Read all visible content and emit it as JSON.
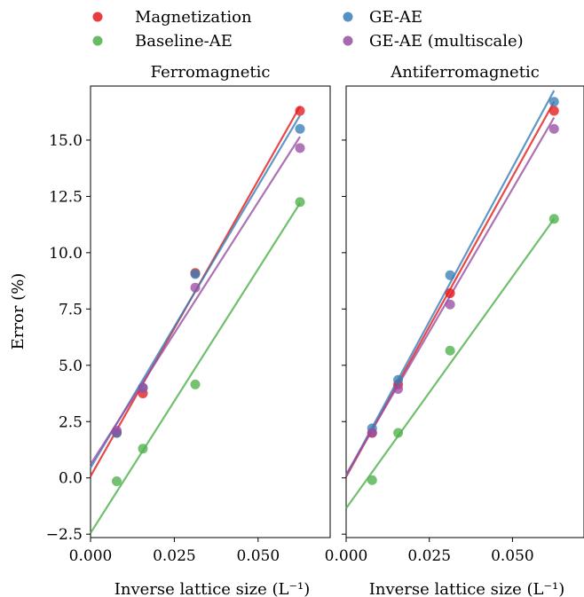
{
  "chart_data": {
    "type": "scatter",
    "ylabel": "Error (%)",
    "y_ticks": [
      -2.5,
      0.0,
      2.5,
      5.0,
      7.5,
      10.0,
      12.5,
      15.0
    ],
    "y_tick_labels": [
      "−2.5",
      "0.0",
      "2.5",
      "5.0",
      "7.5",
      "10.0",
      "12.5",
      "15.0"
    ],
    "ylim": [
      -2.65,
      17.4
    ],
    "x_ticks": [
      0.0,
      0.025,
      0.05
    ],
    "x_tick_labels": [
      "0.000",
      "0.025",
      "0.050"
    ],
    "xlim": [
      0.0,
      0.0715
    ],
    "legend": {
      "placement": "top",
      "entries": [
        {
          "name": "Magnetization",
          "color": "#e41a1c"
        },
        {
          "name": "Baseline-AE",
          "color": "#4daf4a"
        },
        {
          "name": "GE-AE",
          "color": "#377eb8"
        },
        {
          "name": "GE-AE (multiscale)",
          "color": "#984ea3"
        }
      ]
    },
    "panels": [
      {
        "title": "Ferromagnetic",
        "xlabel": "Inverse lattice size (L⁻¹)",
        "series": [
          {
            "name": "Magnetization",
            "color": "#e41a1c",
            "x": [
              0.0078125,
              0.015625,
              0.03125,
              0.0625
            ],
            "y": [
              2.0,
              3.75,
              9.1,
              16.3
            ],
            "fit": [
              0.0,
              0.07,
              0.0625,
              16.5
            ]
          },
          {
            "name": "Baseline-AE",
            "color": "#4daf4a",
            "x": [
              0.0078125,
              0.015625,
              0.03125,
              0.0625
            ],
            "y": [
              -0.15,
              1.3,
              4.15,
              12.25
            ],
            "fit": [
              0.0,
              -2.45,
              0.0625,
              12.2
            ]
          },
          {
            "name": "GE-AE",
            "color": "#377eb8",
            "x": [
              0.0078125,
              0.015625,
              0.03125,
              0.0625
            ],
            "y": [
              2.0,
              4.0,
              9.05,
              15.5
            ],
            "fit": [
              0.0,
              0.45,
              0.0625,
              16.1
            ]
          },
          {
            "name": "GE-AE (multiscale)",
            "color": "#984ea3",
            "x": [
              0.0078125,
              0.015625,
              0.03125,
              0.0625
            ],
            "y": [
              2.1,
              4.0,
              8.45,
              14.65
            ],
            "fit": [
              0.0,
              0.6,
              0.0625,
              15.15
            ]
          }
        ]
      },
      {
        "title": "Antiferromagnetic",
        "xlabel": "Inverse lattice size (L⁻¹)",
        "series": [
          {
            "name": "Magnetization",
            "color": "#e41a1c",
            "x": [
              0.0078125,
              0.015625,
              0.03125,
              0.0625
            ],
            "y": [
              2.0,
              4.15,
              8.2,
              16.3
            ],
            "fit": [
              0.0,
              0.05,
              0.0625,
              16.7
            ]
          },
          {
            "name": "Baseline-AE",
            "color": "#4daf4a",
            "x": [
              0.0078125,
              0.015625,
              0.03125,
              0.0625
            ],
            "y": [
              -0.1,
              2.0,
              5.65,
              11.5
            ],
            "fit": [
              0.0,
              -1.35,
              0.0625,
              11.5
            ]
          },
          {
            "name": "GE-AE",
            "color": "#377eb8",
            "x": [
              0.0078125,
              0.015625,
              0.03125,
              0.0625
            ],
            "y": [
              2.2,
              4.35,
              9.0,
              16.7
            ],
            "fit": [
              0.0,
              0.1,
              0.0625,
              17.2
            ]
          },
          {
            "name": "GE-AE (multiscale)",
            "color": "#984ea3",
            "x": [
              0.0078125,
              0.015625,
              0.03125,
              0.0625
            ],
            "y": [
              2.0,
              3.95,
              7.7,
              15.5
            ],
            "fit": [
              0.0,
              0.15,
              0.0625,
              16.0
            ]
          }
        ]
      }
    ]
  }
}
